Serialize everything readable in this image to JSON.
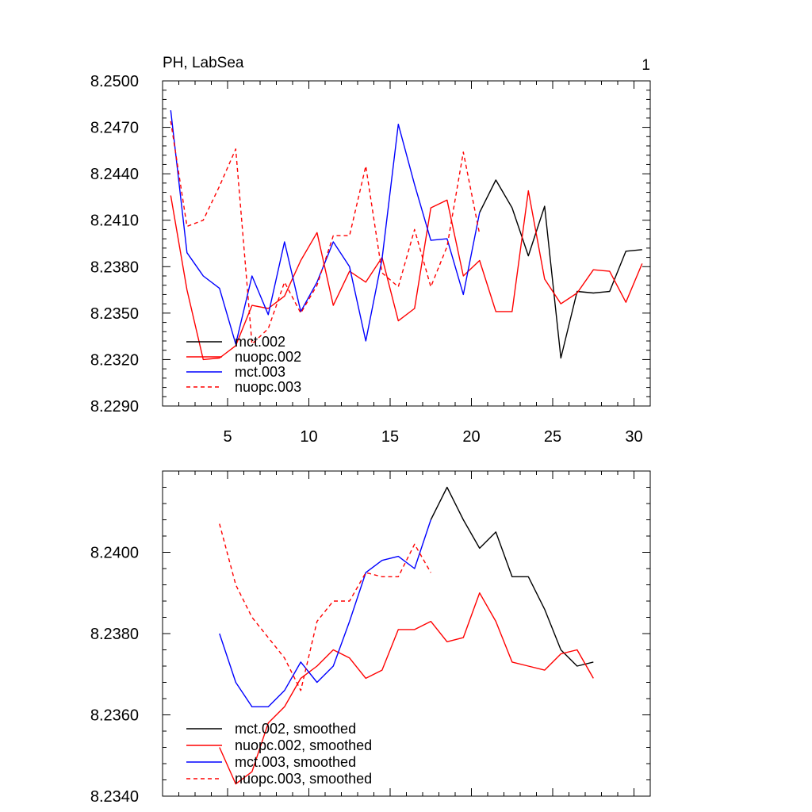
{
  "chart_data": [
    {
      "type": "line",
      "title": "PH, LabSea",
      "corner_label": "1",
      "xlim": [
        1,
        31
      ],
      "ylim": [
        8.229,
        8.25
      ],
      "xticks": [
        5,
        10,
        15,
        20,
        25,
        30
      ],
      "xtick_labels": [
        "5",
        "10",
        "15",
        "20",
        "25",
        "30"
      ],
      "yticks": [
        8.229,
        8.232,
        8.235,
        8.238,
        8.241,
        8.244,
        8.247,
        8.25
      ],
      "ytick_labels": [
        "8.2290",
        "8.2320",
        "8.2350",
        "8.2380",
        "8.2410",
        "8.2440",
        "8.2470",
        "8.2500"
      ],
      "legend_position": "lower-left",
      "series": [
        {
          "name": "mct.002",
          "color": "#000000",
          "dash": false,
          "x": [
            20.5,
            21.5,
            22.5,
            23.5,
            24.5,
            25.5,
            26.5,
            27.5,
            28.5,
            29.5,
            30.5
          ],
          "y": [
            8.2415,
            8.2436,
            8.2418,
            8.2387,
            8.2419,
            8.2321,
            8.2364,
            8.2363,
            8.2364,
            8.239,
            8.2391
          ]
        },
        {
          "name": "nuopc.002",
          "color": "#ff0000",
          "dash": false,
          "x": [
            1.5,
            2.5,
            3.5,
            4.5,
            5.5,
            6.5,
            7.5,
            8.5,
            9.5,
            10.5,
            11.5,
            12.5,
            13.5,
            14.5,
            15.5,
            16.5,
            17.5,
            18.5,
            19.5,
            20.5,
            21.5,
            22.5,
            23.5,
            24.5,
            25.5,
            26.5,
            27.5,
            28.5,
            29.5,
            30.5
          ],
          "y": [
            8.2426,
            8.2365,
            8.232,
            8.2321,
            8.2329,
            8.2355,
            8.2353,
            8.2361,
            8.2384,
            8.2402,
            8.2355,
            8.2377,
            8.237,
            8.2386,
            8.2345,
            8.2353,
            8.2418,
            8.2423,
            8.2374,
            8.2384,
            8.2351,
            8.2351,
            8.2429,
            8.2372,
            8.2356,
            8.2363,
            8.2378,
            8.2377,
            8.2357,
            8.2382
          ]
        },
        {
          "name": "mct.003",
          "color": "#0000ff",
          "dash": false,
          "x": [
            1.5,
            2.5,
            3.5,
            4.5,
            5.5,
            6.5,
            7.5,
            8.5,
            9.5,
            10.5,
            11.5,
            12.5,
            13.5,
            14.5,
            15.5,
            16.5,
            17.5,
            18.5,
            19.5,
            20.5
          ],
          "y": [
            8.2481,
            8.2389,
            8.2374,
            8.2366,
            8.233,
            8.2374,
            8.2349,
            8.2396,
            8.2351,
            8.237,
            8.2396,
            8.238,
            8.2332,
            8.2385,
            8.2472,
            8.2433,
            8.2397,
            8.2398,
            8.2362,
            8.2415
          ]
        },
        {
          "name": "nuopc.003",
          "color": "#ff0000",
          "dash": true,
          "x": [
            1.5,
            2.5,
            3.5,
            4.5,
            5.5,
            6.5,
            7.5,
            8.5,
            9.5,
            10.5,
            11.5,
            12.5,
            13.5,
            14.5,
            15.5,
            16.5,
            17.5,
            18.5,
            19.5,
            20.5
          ],
          "y": [
            8.2474,
            8.2406,
            8.241,
            8.2432,
            8.2456,
            8.233,
            8.234,
            8.237,
            8.235,
            8.2368,
            8.24,
            8.24,
            8.2445,
            8.2376,
            8.2367,
            8.2404,
            8.2367,
            8.2393,
            8.2454,
            8.2401
          ]
        }
      ]
    },
    {
      "type": "line",
      "xlim": [
        1,
        31
      ],
      "ylim": [
        8.234,
        8.242
      ],
      "xticks": [
        5,
        10,
        15,
        20,
        25,
        30
      ],
      "xtick_labels": [],
      "yticks": [
        8.234,
        8.236,
        8.238,
        8.24
      ],
      "ytick_labels": [
        "8.2340",
        "8.2360",
        "8.2380",
        "8.2400"
      ],
      "legend_position": "lower-left",
      "series": [
        {
          "name": "mct.002, smoothed",
          "color": "#000000",
          "dash": false,
          "x": [
            17.5,
            18.5,
            19.5,
            20.5,
            21.5,
            22.5,
            23.5,
            24.5,
            25.5,
            26.5,
            27.5
          ],
          "y": [
            8.2408,
            8.2416,
            8.2408,
            8.2401,
            8.2405,
            8.2394,
            8.2394,
            8.2386,
            8.2376,
            8.2372,
            8.2373
          ]
        },
        {
          "name": "nuopc.002, smoothed",
          "color": "#ff0000",
          "dash": false,
          "x": [
            4.5,
            5.5,
            6.5,
            7.5,
            8.5,
            9.5,
            10.5,
            11.5,
            12.5,
            13.5,
            14.5,
            15.5,
            16.5,
            17.5,
            18.5,
            19.5,
            20.5,
            21.5,
            22.5,
            23.5,
            24.5,
            25.5,
            26.5,
            27.5
          ],
          "y": [
            8.2352,
            8.2343,
            8.2346,
            8.2358,
            8.2362,
            8.2369,
            8.2372,
            8.2376,
            8.2374,
            8.2369,
            8.2371,
            8.2381,
            8.2381,
            8.2383,
            8.2378,
            8.2379,
            8.239,
            8.2383,
            8.2373,
            8.2372,
            8.2371,
            8.2375,
            8.2376,
            8.2369
          ]
        },
        {
          "name": "mct.003, smoothed",
          "color": "#0000ff",
          "dash": false,
          "x": [
            4.5,
            5.5,
            6.5,
            7.5,
            8.5,
            9.5,
            10.5,
            11.5,
            12.5,
            13.5,
            14.5,
            15.5,
            16.5,
            17.5
          ],
          "y": [
            8.238,
            8.2368,
            8.2362,
            8.2362,
            8.2366,
            8.2373,
            8.2368,
            8.2372,
            8.2383,
            8.2395,
            8.2398,
            8.2399,
            8.2396,
            8.2408
          ]
        },
        {
          "name": "nuopc.003, smoothed",
          "color": "#ff0000",
          "dash": true,
          "x": [
            4.5,
            5.5,
            6.5,
            7.5,
            8.5,
            9.5,
            10.5,
            11.5,
            12.5,
            13.5,
            14.5,
            15.5,
            16.5,
            17.5
          ],
          "y": [
            8.2407,
            8.2392,
            8.2384,
            8.2379,
            8.2374,
            8.2366,
            8.2383,
            8.2388,
            8.2388,
            8.2395,
            8.2394,
            8.2394,
            8.2402,
            8.2395
          ]
        }
      ]
    }
  ]
}
